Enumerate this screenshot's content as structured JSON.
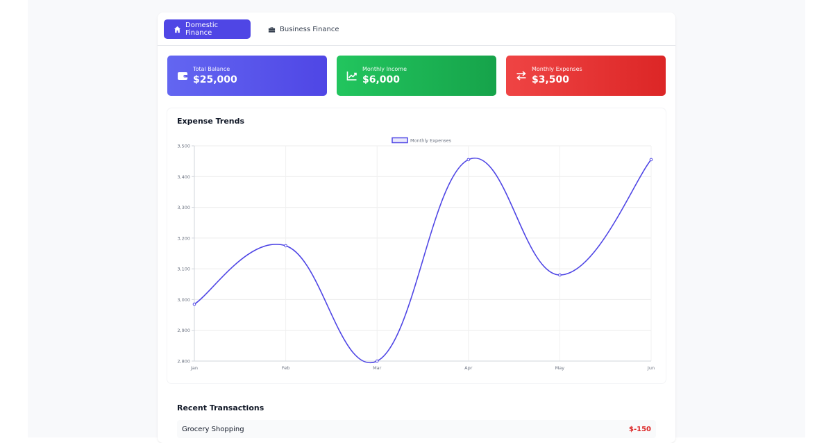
{
  "tabs": [
    {
      "label": "Domestic Finance",
      "icon": "home-icon",
      "active": true
    },
    {
      "label": "Business Finance",
      "icon": "briefcase-icon",
      "active": false
    }
  ],
  "stats": [
    {
      "label": "Total Balance",
      "value": "$25,000",
      "icon": "wallet-icon",
      "color": "#4f46e5"
    },
    {
      "label": "Monthly Income",
      "value": "$6,000",
      "icon": "chart-line-icon",
      "color": "#16a34a"
    },
    {
      "label": "Monthly Expenses",
      "value": "$3,500",
      "icon": "exchange-icon",
      "color": "#dc2626"
    }
  ],
  "chart_section_title": "Expense Trends",
  "chart_data": {
    "type": "line",
    "x": [
      "Jan",
      "Feb",
      "Mar",
      "Apr",
      "May",
      "Jun"
    ],
    "series": [
      {
        "name": "Monthly Expenses",
        "values": [
          2985,
          3175,
          2800,
          3455,
          3080,
          3455
        ],
        "color": "#4f46e5"
      }
    ],
    "ylim": [
      2800,
      3500
    ],
    "yticks": [
      "3,500",
      "3,400",
      "3,300",
      "3,200",
      "3,100",
      "3,000",
      "2,900",
      "2,800"
    ],
    "grid": true,
    "legend": "top-center",
    "title": "",
    "xlabel": "",
    "ylabel": ""
  },
  "transactions_title": "Recent Transactions",
  "transactions": [
    {
      "description": "Grocery Shopping",
      "amount": "$-150"
    }
  ]
}
